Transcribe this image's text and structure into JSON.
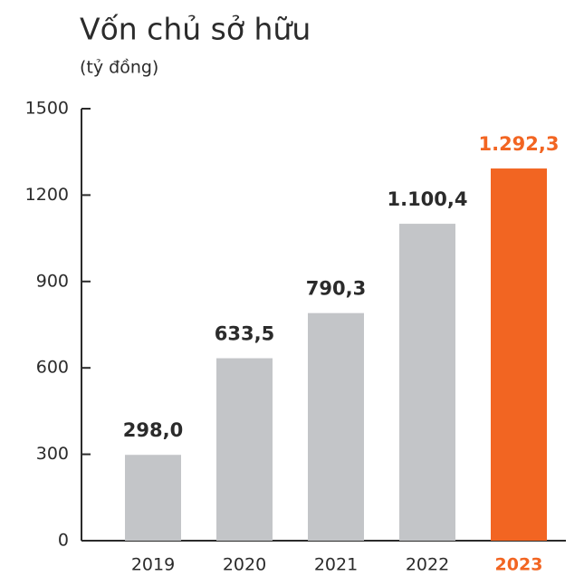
{
  "chart_data": {
    "type": "bar",
    "title": "Vốn chủ sở hữu",
    "subtitle": "(tỷ đồng)",
    "categories": [
      "2019",
      "2020",
      "2021",
      "2022",
      "2023"
    ],
    "values": [
      298.0,
      633.5,
      790.3,
      1100.4,
      1292.3
    ],
    "value_labels": [
      "298,0",
      "633,5",
      "790,3",
      "1.100,4",
      "1.292,3"
    ],
    "colors": [
      "#c3c5c8",
      "#c3c5c8",
      "#c3c5c8",
      "#c3c5c8",
      "#f26522"
    ],
    "ylim": [
      0,
      1500
    ],
    "yticks": [
      0,
      300,
      600,
      900,
      1200,
      1500
    ],
    "grid": false
  }
}
